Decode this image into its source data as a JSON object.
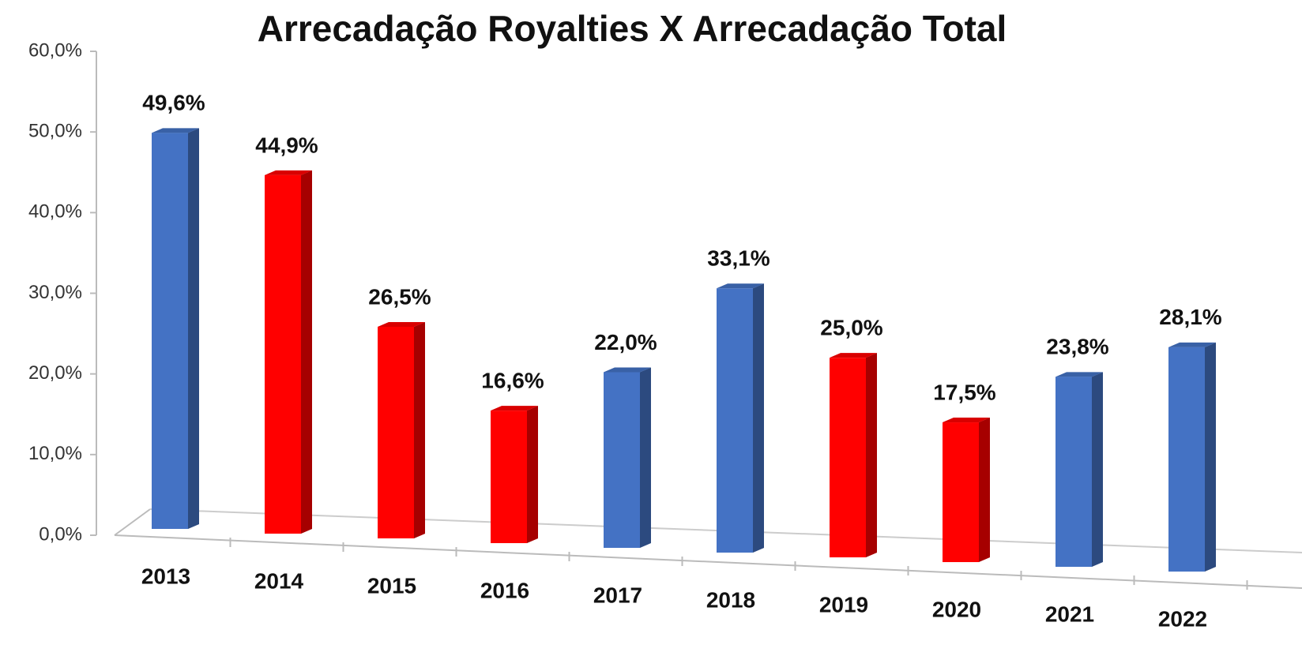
{
  "chart_data": {
    "type": "bar3d",
    "title": "Arrecadação Royalties X Arrecadação Total",
    "categories": [
      "2013",
      "2014",
      "2015",
      "2016",
      "2017",
      "2018",
      "2019",
      "2020",
      "2021",
      "2022"
    ],
    "values": [
      49.6,
      44.9,
      26.5,
      16.6,
      22.0,
      33.1,
      25.0,
      17.5,
      23.8,
      28.1
    ],
    "value_labels": [
      "49,6%",
      "44,9%",
      "26,5%",
      "16,6%",
      "22,0%",
      "33,1%",
      "25,0%",
      "17,5%",
      "23,8%",
      "28,1%"
    ],
    "colors": [
      "#4472c4",
      "#ff0000",
      "#ff0000",
      "#ff0000",
      "#4472c4",
      "#4472c4",
      "#ff0000",
      "#ff0000",
      "#4472c4",
      "#4472c4"
    ],
    "ylim": [
      0,
      60
    ],
    "yticks": [
      {
        "value": 0,
        "label": "0,0%"
      },
      {
        "value": 10,
        "label": "10,0%"
      },
      {
        "value": 20,
        "label": "20,0%"
      },
      {
        "value": 30,
        "label": "30,0%"
      },
      {
        "value": 40,
        "label": "40,0%"
      },
      {
        "value": 50,
        "label": "50,0%"
      },
      {
        "value": 60,
        "label": "60,0%"
      }
    ]
  }
}
